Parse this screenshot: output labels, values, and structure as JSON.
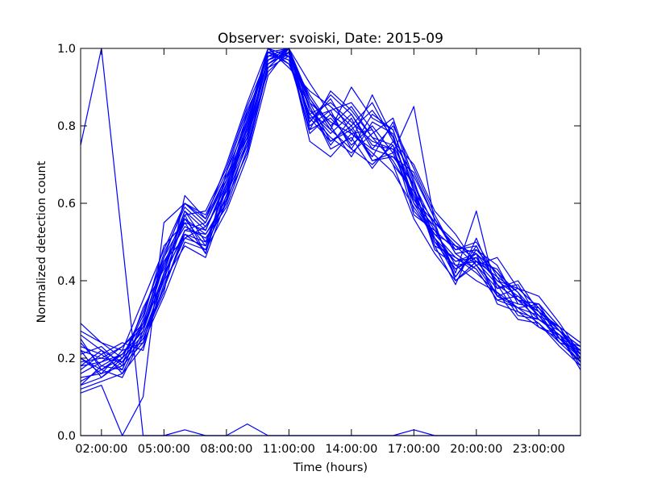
{
  "chart_data": {
    "type": "line",
    "title": "Observer: svoiski, Date: 2015-09",
    "xlabel": "Time (hours)",
    "ylabel": "Normalized detection count",
    "xlim": [
      1,
      25
    ],
    "ylim": [
      0.0,
      1.0
    ],
    "x_ticks": [
      {
        "value": 2,
        "label": "02:00:00"
      },
      {
        "value": 5,
        "label": "05:00:00"
      },
      {
        "value": 8,
        "label": "08:00:00"
      },
      {
        "value": 11,
        "label": "11:00:00"
      },
      {
        "value": 14,
        "label": "14:00:00"
      },
      {
        "value": 17,
        "label": "17:00:00"
      },
      {
        "value": 20,
        "label": "20:00:00"
      },
      {
        "value": 23,
        "label": "23:00:00"
      }
    ],
    "y_ticks": [
      {
        "value": 0.0,
        "label": "0.0"
      },
      {
        "value": 0.2,
        "label": "0.2"
      },
      {
        "value": 0.4,
        "label": "0.4"
      },
      {
        "value": 0.6,
        "label": "0.6"
      },
      {
        "value": 0.8,
        "label": "0.8"
      },
      {
        "value": 1.0,
        "label": "1.0"
      }
    ],
    "line_color": "#0000ff",
    "grid": false,
    "legend": "none",
    "x": [
      1,
      2,
      3,
      4,
      5,
      6,
      7,
      8,
      9,
      10,
      11,
      12,
      13,
      14,
      15,
      16,
      17,
      18,
      19,
      20,
      21,
      22,
      23,
      24,
      25
    ],
    "series": [
      {
        "values": [
          0.75,
          1.0,
          0.5,
          0.0,
          0.0,
          0.0,
          0.0,
          0.0,
          0.0,
          0.0,
          0.0,
          0.0,
          0.0,
          0.0,
          0.0,
          0.0,
          0.0,
          0.0,
          0.0,
          0.0,
          0.0,
          0.0,
          0.0,
          0.0,
          0.0
        ]
      },
      {
        "values": [
          0.0,
          0.0,
          0.0,
          0.0,
          0.0,
          0.015,
          0.0,
          0.0,
          0.03,
          0.0,
          0.0,
          0.0,
          0.0,
          0.0,
          0.0,
          0.0,
          0.015,
          0.0,
          0.0,
          0.0,
          0.0,
          0.0,
          0.0,
          0.0,
          0.0
        ]
      },
      {
        "values": [
          0.11,
          0.13,
          0.0,
          0.1,
          0.55,
          0.6,
          0.56,
          0.7,
          0.86,
          1.0,
          0.98,
          0.78,
          0.83,
          0.75,
          0.8,
          0.73,
          0.85,
          0.55,
          0.49,
          0.47,
          0.4,
          0.38,
          0.33,
          0.27,
          0.22
        ]
      },
      {
        "values": [
          0.2,
          0.17,
          0.15,
          0.26,
          0.38,
          0.52,
          0.5,
          0.62,
          0.75,
          0.95,
          1.0,
          0.82,
          0.76,
          0.8,
          0.71,
          0.72,
          0.65,
          0.51,
          0.43,
          0.46,
          0.36,
          0.33,
          0.31,
          0.28,
          0.19
        ]
      },
      {
        "values": [
          0.18,
          0.19,
          0.21,
          0.27,
          0.42,
          0.58,
          0.53,
          0.65,
          0.78,
          0.97,
          0.99,
          0.86,
          0.81,
          0.78,
          0.74,
          0.8,
          0.69,
          0.57,
          0.47,
          0.48,
          0.42,
          0.35,
          0.34,
          0.25,
          0.21
        ]
      },
      {
        "values": [
          0.15,
          0.16,
          0.18,
          0.24,
          0.36,
          0.5,
          0.48,
          0.58,
          0.72,
          0.93,
          1.0,
          0.84,
          0.79,
          0.74,
          0.7,
          0.75,
          0.64,
          0.49,
          0.39,
          0.51,
          0.38,
          0.39,
          0.3,
          0.26,
          0.2
        ]
      },
      {
        "values": [
          0.13,
          0.18,
          0.17,
          0.29,
          0.46,
          0.56,
          0.52,
          0.61,
          0.8,
          0.99,
          1.0,
          0.91,
          0.83,
          0.79,
          0.84,
          0.77,
          0.61,
          0.52,
          0.46,
          0.43,
          0.35,
          0.36,
          0.32,
          0.27,
          0.23
        ]
      },
      {
        "values": [
          0.23,
          0.21,
          0.24,
          0.22,
          0.41,
          0.53,
          0.55,
          0.66,
          0.83,
          0.98,
          0.98,
          0.79,
          0.89,
          0.84,
          0.77,
          0.71,
          0.62,
          0.53,
          0.44,
          0.4,
          0.37,
          0.33,
          0.29,
          0.24,
          0.22
        ]
      },
      {
        "values": [
          0.27,
          0.24,
          0.22,
          0.35,
          0.48,
          0.6,
          0.57,
          0.68,
          0.84,
          0.96,
          1.0,
          0.87,
          0.79,
          0.9,
          0.82,
          0.79,
          0.63,
          0.55,
          0.5,
          0.45,
          0.43,
          0.35,
          0.34,
          0.28,
          0.24
        ]
      },
      {
        "values": [
          0.19,
          0.2,
          0.19,
          0.28,
          0.44,
          0.55,
          0.47,
          0.64,
          0.77,
          0.94,
          0.99,
          0.76,
          0.72,
          0.78,
          0.73,
          0.68,
          0.59,
          0.51,
          0.41,
          0.49,
          0.39,
          0.31,
          0.3,
          0.26,
          0.18
        ]
      },
      {
        "values": [
          0.12,
          0.14,
          0.16,
          0.23,
          0.39,
          0.51,
          0.49,
          0.6,
          0.76,
          1.0,
          0.95,
          0.89,
          0.85,
          0.8,
          0.86,
          0.76,
          0.7,
          0.58,
          0.52,
          0.44,
          0.46,
          0.38,
          0.36,
          0.29,
          0.21
        ]
      },
      {
        "values": [
          0.22,
          0.15,
          0.2,
          0.31,
          0.47,
          0.59,
          0.54,
          0.63,
          0.81,
          0.99,
          0.97,
          0.83,
          0.77,
          0.73,
          0.78,
          0.82,
          0.66,
          0.5,
          0.45,
          0.47,
          0.34,
          0.32,
          0.28,
          0.25,
          0.2
        ]
      },
      {
        "values": [
          0.26,
          0.22,
          0.19,
          0.25,
          0.37,
          0.62,
          0.56,
          0.67,
          0.79,
          0.97,
          1.0,
          0.81,
          0.88,
          0.83,
          0.75,
          0.74,
          0.6,
          0.54,
          0.42,
          0.58,
          0.36,
          0.34,
          0.33,
          0.27,
          0.23
        ]
      },
      {
        "values": [
          0.16,
          0.19,
          0.23,
          0.29,
          0.45,
          0.54,
          0.51,
          0.59,
          0.74,
          0.96,
          0.99,
          0.85,
          0.74,
          0.77,
          0.69,
          0.76,
          0.67,
          0.56,
          0.48,
          0.5,
          0.41,
          0.37,
          0.31,
          0.24,
          0.19
        ]
      },
      {
        "values": [
          0.21,
          0.23,
          0.18,
          0.33,
          0.43,
          0.57,
          0.58,
          0.69,
          0.85,
          0.98,
          1.0,
          0.8,
          0.84,
          0.86,
          0.79,
          0.7,
          0.56,
          0.47,
          0.4,
          0.45,
          0.39,
          0.35,
          0.3,
          0.26,
          0.22
        ]
      },
      {
        "values": [
          0.14,
          0.17,
          0.2,
          0.26,
          0.4,
          0.49,
          0.46,
          0.61,
          0.73,
          0.95,
          0.98,
          0.88,
          0.8,
          0.72,
          0.81,
          0.78,
          0.58,
          0.52,
          0.49,
          0.44,
          0.38,
          0.4,
          0.32,
          0.28,
          0.2
        ]
      },
      {
        "values": [
          0.24,
          0.18,
          0.21,
          0.27,
          0.44,
          0.58,
          0.5,
          0.64,
          0.82,
          1.0,
          0.96,
          0.83,
          0.86,
          0.81,
          0.76,
          0.74,
          0.62,
          0.49,
          0.46,
          0.42,
          0.37,
          0.3,
          0.29,
          0.23,
          0.18
        ]
      },
      {
        "values": [
          0.17,
          0.21,
          0.17,
          0.3,
          0.49,
          0.55,
          0.53,
          0.66,
          0.78,
          0.97,
          1.0,
          0.86,
          0.76,
          0.79,
          0.72,
          0.81,
          0.65,
          0.54,
          0.41,
          0.48,
          0.44,
          0.34,
          0.33,
          0.27,
          0.21
        ]
      },
      {
        "values": [
          0.2,
          0.16,
          0.22,
          0.24,
          0.42,
          0.52,
          0.48,
          0.62,
          0.8,
          0.99,
          0.97,
          0.79,
          0.82,
          0.76,
          0.88,
          0.77,
          0.6,
          0.51,
          0.45,
          0.46,
          0.4,
          0.36,
          0.31,
          0.25,
          0.19
        ]
      },
      {
        "values": [
          0.29,
          0.24,
          0.2,
          0.32,
          0.46,
          0.6,
          0.55,
          0.67,
          0.77,
          0.98,
          1.0,
          0.84,
          0.78,
          0.83,
          0.74,
          0.72,
          0.68,
          0.56,
          0.47,
          0.43,
          0.35,
          0.33,
          0.34,
          0.28,
          0.24
        ]
      },
      {
        "values": [
          0.13,
          0.15,
          0.19,
          0.25,
          0.38,
          0.53,
          0.52,
          0.6,
          0.84,
          0.96,
          0.99,
          0.81,
          0.87,
          0.78,
          0.79,
          0.7,
          0.63,
          0.5,
          0.43,
          0.47,
          0.42,
          0.37,
          0.28,
          0.26,
          0.17
        ]
      },
      {
        "values": [
          0.22,
          0.2,
          0.23,
          0.28,
          0.41,
          0.56,
          0.49,
          0.65,
          0.79,
          1.0,
          0.98,
          0.87,
          0.8,
          0.85,
          0.77,
          0.75,
          0.57,
          0.53,
          0.48,
          0.49,
          0.39,
          0.35,
          0.32,
          0.24,
          0.22
        ]
      },
      {
        "values": [
          0.18,
          0.22,
          0.16,
          0.27,
          0.45,
          0.51,
          0.54,
          0.63,
          0.76,
          0.97,
          1.0,
          0.82,
          0.84,
          0.74,
          0.83,
          0.79,
          0.64,
          0.48,
          0.44,
          0.45,
          0.41,
          0.32,
          0.3,
          0.27,
          0.2
        ]
      },
      {
        "values": [
          0.25,
          0.17,
          0.21,
          0.29,
          0.4,
          0.57,
          0.47,
          0.68,
          0.81,
          0.99,
          0.96,
          0.85,
          0.75,
          0.82,
          0.71,
          0.73,
          0.61,
          0.55,
          0.4,
          0.44,
          0.36,
          0.38,
          0.33,
          0.25,
          0.23
        ]
      }
    ]
  }
}
